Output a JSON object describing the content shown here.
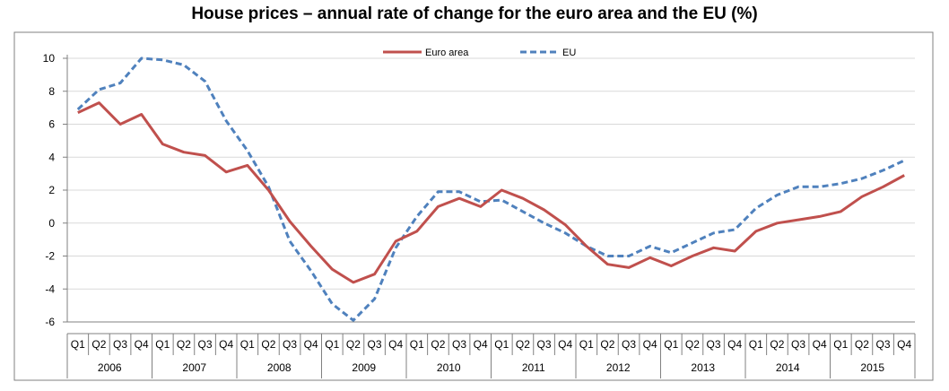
{
  "chart_data": {
    "type": "line",
    "title": "House prices – annual rate of change for the euro area and the EU (%)",
    "xlabel": "",
    "ylabel": "",
    "ylim": [
      -6,
      10
    ],
    "yticks": [
      10,
      8,
      6,
      4,
      2,
      0,
      -2,
      -4,
      -6
    ],
    "grid": true,
    "legend_position": "top-center",
    "years": [
      "2006",
      "2007",
      "2008",
      "2009",
      "2010",
      "2011",
      "2012",
      "2013",
      "2014",
      "2015"
    ],
    "quarters": [
      "Q1",
      "Q2",
      "Q3",
      "Q4"
    ],
    "series": [
      {
        "name": "Euro area",
        "color": "#c0504d",
        "style": "solid",
        "values": [
          6.7,
          7.3,
          6.0,
          6.6,
          4.8,
          4.3,
          4.1,
          3.1,
          3.5,
          2.0,
          0.1,
          -1.4,
          -2.8,
          -3.6,
          -3.1,
          -1.1,
          -0.5,
          1.0,
          1.5,
          1.0,
          2.0,
          1.5,
          0.8,
          -0.1,
          -1.4,
          -2.5,
          -2.7,
          -2.1,
          -2.6,
          -2.0,
          -1.5,
          -1.7,
          -0.5,
          0.0,
          0.2,
          0.4,
          0.7,
          1.6,
          2.2,
          2.9
        ]
      },
      {
        "name": "EU",
        "color": "#4f81bd",
        "style": "dashed",
        "values": [
          6.9,
          8.1,
          8.5,
          10.0,
          9.9,
          9.6,
          8.6,
          6.2,
          4.4,
          2.2,
          -1.1,
          -2.9,
          -4.9,
          -5.9,
          -4.6,
          -1.5,
          0.4,
          1.9,
          1.9,
          1.3,
          1.4,
          0.7,
          0.0,
          -0.6,
          -1.4,
          -2.0,
          -2.0,
          -1.4,
          -1.8,
          -1.2,
          -0.6,
          -0.4,
          0.9,
          1.7,
          2.2,
          2.2,
          2.4,
          2.7,
          3.2,
          3.8
        ]
      }
    ]
  }
}
